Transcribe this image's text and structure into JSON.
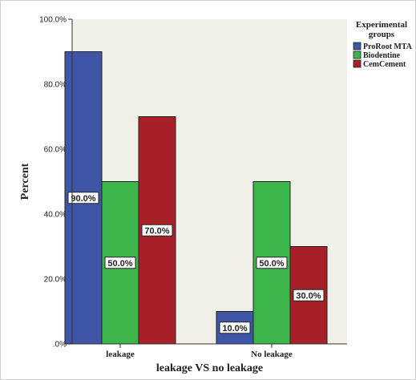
{
  "colors": {
    "plot_bg": "#f1f0e8",
    "series": [
      "#3f56a6",
      "#3cb54a",
      "#a82027"
    ]
  },
  "chart_data": {
    "type": "bar",
    "title": "",
    "xlabel": "leakage VS no leakage",
    "ylabel": "Percent",
    "ylim": [
      0,
      100
    ],
    "yticks": [
      0,
      20,
      40,
      60,
      80,
      100
    ],
    "ytick_labels": [
      ".0%",
      "20.0%",
      "40.0%",
      "60.0%",
      "80.0%",
      "100.0%"
    ],
    "categories": [
      "leakage",
      "No leakage"
    ],
    "legend": {
      "title_line1": "Experimental",
      "title_line2": "groups",
      "placement": "top-right"
    },
    "series": [
      {
        "name": "ProRoot MTA",
        "values": [
          90,
          10
        ],
        "labels": [
          "90.0%",
          "10.0%"
        ]
      },
      {
        "name": "Biodentine",
        "values": [
          50,
          50
        ],
        "labels": [
          "50.0%",
          "50.0%"
        ]
      },
      {
        "name": "CemCement",
        "values": [
          70,
          30
        ],
        "labels": [
          "70.0%",
          "30.0%"
        ]
      }
    ],
    "grid": false
  }
}
